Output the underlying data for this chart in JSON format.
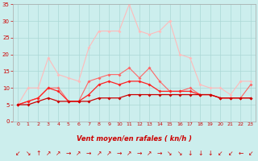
{
  "xlabel": "Vent moyen/en rafales ( kn/h )",
  "x": [
    0,
    1,
    2,
    3,
    4,
    5,
    6,
    7,
    8,
    9,
    10,
    11,
    12,
    13,
    14,
    15,
    16,
    17,
    18,
    19,
    20,
    21,
    22,
    23
  ],
  "line_light_pink": [
    5,
    10,
    10,
    19,
    14,
    13,
    12,
    22,
    27,
    27,
    27,
    35,
    27,
    26,
    27,
    30,
    20,
    19,
    11,
    10,
    10,
    8,
    12,
    12
  ],
  "line_medium_red": [
    5,
    6,
    7,
    10,
    10,
    6,
    6,
    12,
    13,
    14,
    14,
    16,
    13,
    16,
    12,
    9,
    9,
    10,
    8,
    8,
    7,
    7,
    7,
    11
  ],
  "line_bright_red": [
    5,
    6,
    7,
    10,
    9,
    6,
    6,
    8,
    11,
    12,
    11,
    12,
    12,
    11,
    9,
    9,
    9,
    9,
    8,
    8,
    7,
    7,
    7,
    7
  ],
  "line_dark_red": [
    5,
    5,
    6,
    7,
    6,
    6,
    6,
    6,
    7,
    7,
    7,
    8,
    8,
    8,
    8,
    8,
    8,
    8,
    8,
    8,
    7,
    7,
    7,
    7
  ],
  "ylim": [
    0,
    35
  ],
  "yticks": [
    0,
    5,
    10,
    15,
    20,
    25,
    30,
    35
  ],
  "bg_color": "#cceeed",
  "grid_color": "#aad8d6",
  "color_light_pink": "#ffbbbb",
  "color_medium_red": "#ff6666",
  "color_bright_red": "#ff2222",
  "color_dark_red": "#cc0000",
  "arrow_symbols": [
    "↙",
    "↘",
    "↑",
    "↗",
    "↗",
    "→",
    "↗",
    "→",
    "↗",
    "↗",
    "→",
    "↗",
    "→",
    "↗",
    "→",
    "↘",
    "↘",
    "↓",
    "↓",
    "↓",
    "↙",
    "↙",
    "←",
    "↙"
  ]
}
